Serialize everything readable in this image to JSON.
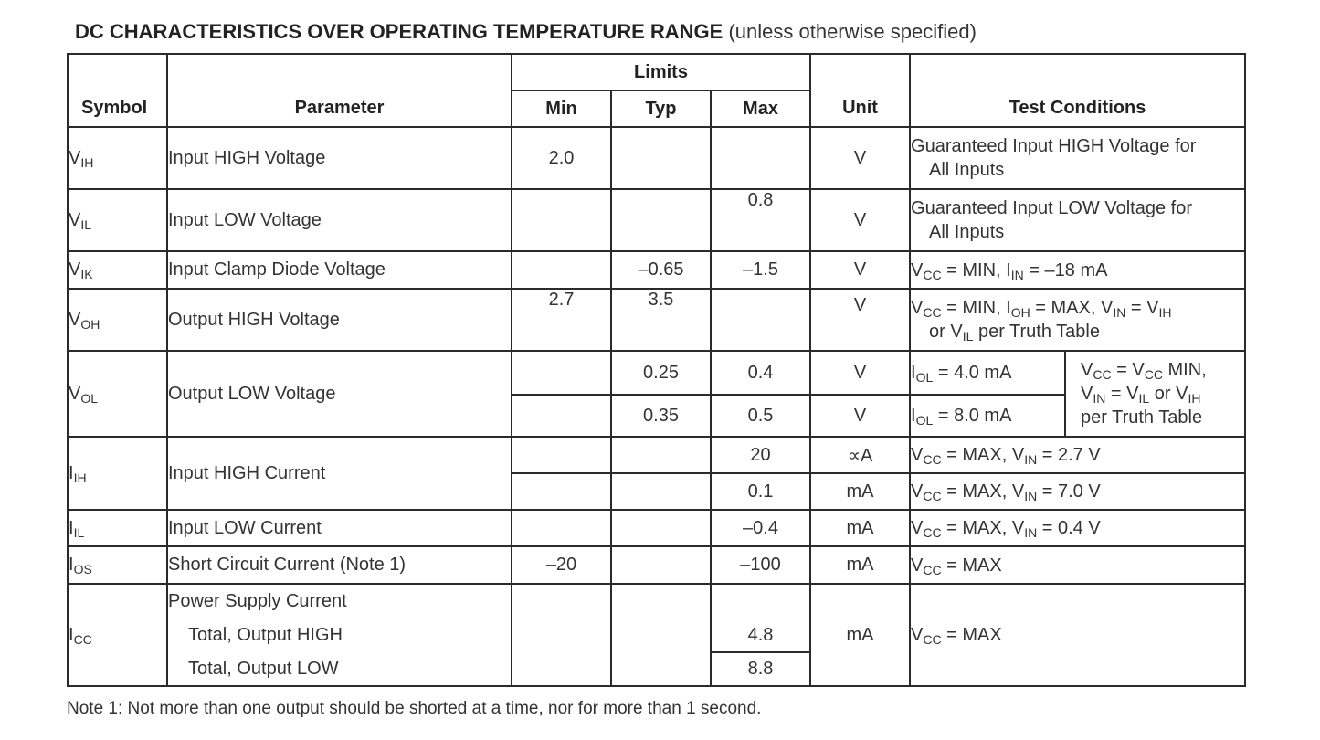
{
  "title": {
    "main": "DC CHARACTERISTICS OVER OPERATING TEMPERATURE RANGE",
    "sub": "(unless otherwise specified)"
  },
  "headers": {
    "symbol": "Symbol",
    "parameter": "Parameter",
    "limits": "Limits",
    "min": "Min",
    "typ": "Typ",
    "max": "Max",
    "unit": "Unit",
    "test_conditions": "Test Conditions"
  },
  "rows": {
    "vih": {
      "sym": "V",
      "sym_sub": "IH",
      "param": "Input HIGH Voltage",
      "min": "2.0",
      "unit": "V",
      "cond_1": "Guaranteed Input HIGH Voltage for",
      "cond_2": "All Inputs"
    },
    "vil": {
      "sym": "V",
      "sym_sub": "IL",
      "param": "Input LOW Voltage",
      "max": "0.8",
      "unit": "V",
      "cond_1": "Guaranteed Input LOW Voltage for",
      "cond_2": "All Inputs"
    },
    "vik": {
      "sym": "V",
      "sym_sub": "IK",
      "param": "Input Clamp Diode Voltage",
      "typ": "–0.65",
      "max": "–1.5",
      "unit": "V"
    },
    "voh": {
      "sym": "V",
      "sym_sub": "OH",
      "param": "Output HIGH Voltage",
      "min": "2.7",
      "typ": "3.5",
      "unit": "V"
    },
    "vol": {
      "sym": "V",
      "sym_sub": "OL",
      "param": "Output LOW Voltage",
      "typ_1": "0.25",
      "max_1": "0.4",
      "unit_1": "V",
      "iol_1": "= 4.0 mA",
      "typ_2": "0.35",
      "max_2": "0.5",
      "unit_2": "V",
      "iol_2": "= 8.0 mA"
    },
    "iih": {
      "sym": "I",
      "sym_sub": "IH",
      "param": "Input HIGH Current",
      "max_1": "20",
      "unit_1": "∝A",
      "max_2": "0.1",
      "unit_2": "mA"
    },
    "iil": {
      "sym": "I",
      "sym_sub": "IL",
      "param": "Input LOW Current",
      "max": "–0.4",
      "unit": "mA"
    },
    "ios": {
      "sym": "I",
      "sym_sub": "OS",
      "param": "Short Circuit Current (Note 1)",
      "min": "–20",
      "max": "–100",
      "unit": "mA"
    },
    "icc": {
      "sym": "I",
      "sym_sub": "CC",
      "param": "Power Supply Current",
      "param_1": "Total, Output HIGH",
      "param_2": "Total, Output LOW",
      "max_1": "4.8",
      "max_2": "8.8",
      "unit": "mA"
    }
  },
  "note": "Note 1: Not more than one output should be shorted at a time, nor for more than 1 second."
}
